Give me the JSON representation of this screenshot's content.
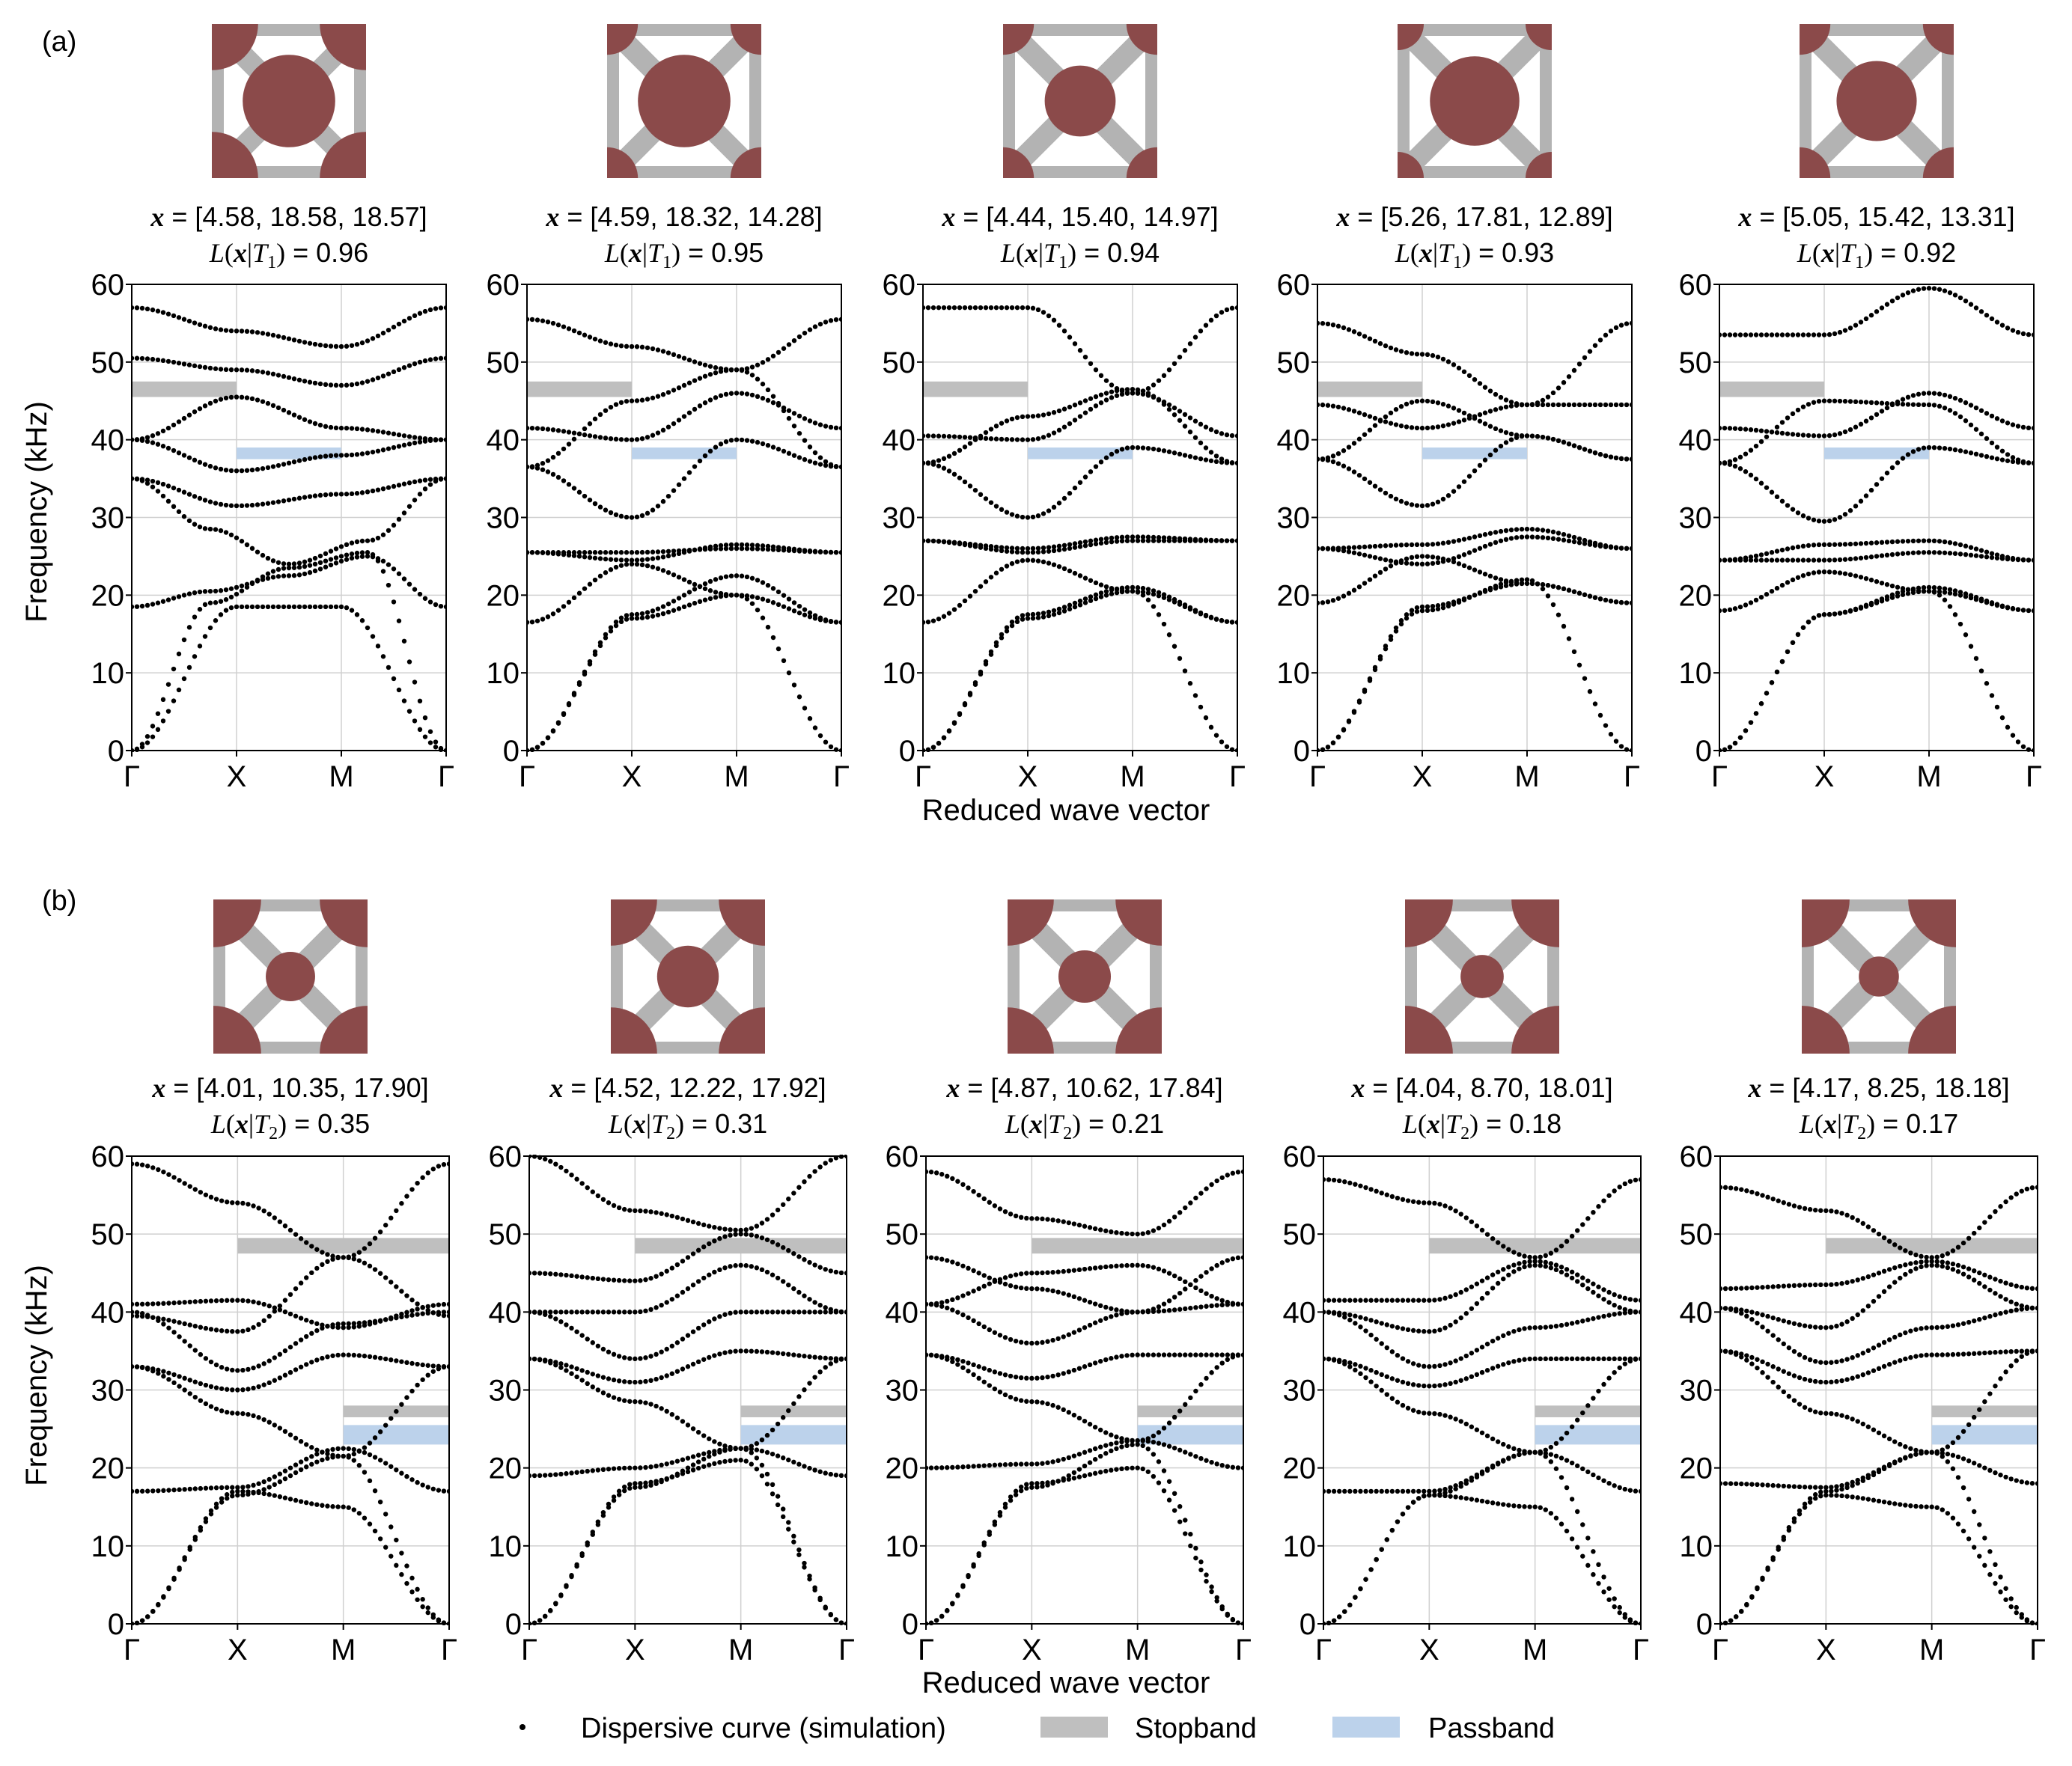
{
  "figure": {
    "colors": {
      "rod": "#b3b3b3",
      "mass": "#8b4a4a",
      "stopband": "#bfbfbf",
      "passband": "#bcd2eb",
      "grid": "#d0d0d0",
      "dot": "#000000"
    },
    "legend": {
      "dispersive": "Dispersive curve (simulation)",
      "stopband": "Stopband",
      "passband": "Passband"
    }
  },
  "chart_data": [
    {
      "panel": "(a)",
      "type": "scatter",
      "ylabel": "Frequency (kHz)",
      "xlabel": "Reduced wave vector",
      "x_ticks": [
        "Γ",
        "X",
        "M",
        "Γ"
      ],
      "ylim": [
        0,
        60
      ],
      "y_ticks": [
        "0",
        "10",
        "20",
        "30",
        "40",
        "50",
        "60"
      ],
      "grid": true,
      "stopband": {
        "path_segment": "Γ-X",
        "range_khz": [
          45.5,
          47.5
        ]
      },
      "passband": {
        "path_segment": "X-M",
        "range_khz": [
          37.5,
          39.0
        ]
      },
      "subplots": [
        {
          "x_text": "= [4.58, 18.58, 18.57]",
          "l_value": "0.96",
          "t_sub": "1",
          "center_r": 0.3,
          "corner_r": 0.3,
          "bands": [
            [
              0,
              18.5,
              18.5,
              0
            ],
            [
              0,
              19.0,
              23.5,
              25.5,
              0
            ],
            [
              18.5,
              20.5,
              22.5,
              25.0,
              18.5
            ],
            [
              35.0,
              31.5,
              33.0,
              35.0
            ],
            [
              35.0,
              28.5,
              24.0,
              27.0,
              35.0
            ],
            [
              40.0,
              36.0,
              38.0,
              40.0
            ],
            [
              40.0,
              45.5,
              41.5,
              40.0
            ],
            [
              50.5,
              49.0,
              47.0,
              50.5
            ],
            [
              57.0,
              54.0,
              52.0,
              57.0
            ]
          ]
        },
        {
          "x_text": "= [4.59, 18.32, 14.28]",
          "l_value": "0.95",
          "t_sub": "1",
          "center_r": 0.3,
          "corner_r": 0.2,
          "bands": [
            [
              0,
              17.0,
              20.0,
              0
            ],
            [
              0,
              17.5,
              22.5,
              16.5
            ],
            [
              16.5,
              24.0,
              20.0,
              16.5
            ],
            [
              25.5,
              24.5,
              26.5,
              25.5
            ],
            [
              25.5,
              25.5,
              26.0,
              25.5
            ],
            [
              36.5,
              30.0,
              40.0,
              36.5
            ],
            [
              41.5,
              40.0,
              46.0,
              41.5
            ],
            [
              36.5,
              45.0,
              49.0,
              36.5
            ],
            [
              55.5,
              52.0,
              49.0,
              55.5
            ]
          ]
        },
        {
          "x_text": "= [4.44, 15.40, 14.97]",
          "l_value": "0.94",
          "t_sub": "1",
          "center_r": 0.23,
          "corner_r": 0.2,
          "bands": [
            [
              0,
              17.0,
              20.5,
              0
            ],
            [
              0,
              17.5,
              21.0,
              16.5
            ],
            [
              16.5,
              24.5,
              20.5,
              16.5
            ],
            [
              27.0,
              26.0,
              27.5,
              27.0
            ],
            [
              27.0,
              25.5,
              27.0,
              27.0
            ],
            [
              37.0,
              30.0,
              39.0,
              37.0
            ],
            [
              40.5,
              40.0,
              46.0,
              40.5
            ],
            [
              37.0,
              43.0,
              46.5,
              37.0
            ],
            [
              57.0,
              57.0,
              46.0,
              57.0
            ]
          ]
        },
        {
          "x_text": "= [5.26, 17.81, 12.89]",
          "l_value": "0.93",
          "t_sub": "1",
          "center_r": 0.29,
          "corner_r": 0.17,
          "bands": [
            [
              0,
              18.0,
              22.0,
              0
            ],
            [
              0,
              18.5,
              21.5,
              19.0
            ],
            [
              19.0,
              25.0,
              21.5,
              19.0
            ],
            [
              26.0,
              26.5,
              28.5,
              26.0
            ],
            [
              26.0,
              24.0,
              27.5,
              26.0
            ],
            [
              37.5,
              31.5,
              40.5,
              37.5
            ],
            [
              44.5,
              41.5,
              44.5,
              44.5
            ],
            [
              37.5,
              45.0,
              40.5,
              37.5
            ],
            [
              55.0,
              51.0,
              44.5,
              55.0
            ]
          ]
        },
        {
          "x_text": "= [5.05, 15.42, 13.31]",
          "l_value": "0.92",
          "t_sub": "1",
          "center_r": 0.26,
          "corner_r": 0.2,
          "bands": [
            [
              0,
              17.5,
              20.5,
              0
            ],
            [
              0,
              17.5,
              21.0,
              18.0
            ],
            [
              18.0,
              23.0,
              20.5,
              18.0
            ],
            [
              24.5,
              26.5,
              27.0,
              24.5
            ],
            [
              24.5,
              24.5,
              25.5,
              24.5
            ],
            [
              37.0,
              29.5,
              39.0,
              37.0
            ],
            [
              41.5,
              40.5,
              46.0,
              41.5
            ],
            [
              37.0,
              45.0,
              44.5,
              37.0
            ],
            [
              53.5,
              53.5,
              59.5,
              53.5
            ]
          ]
        }
      ]
    },
    {
      "panel": "(b)",
      "type": "scatter",
      "ylabel": "Frequency (kHz)",
      "xlabel": "Reduced wave vector",
      "x_ticks": [
        "Γ",
        "X",
        "M",
        "Γ"
      ],
      "ylim": [
        0,
        60
      ],
      "y_ticks": [
        "0",
        "10",
        "20",
        "30",
        "40",
        "50",
        "60"
      ],
      "grid": true,
      "stopbands": [
        {
          "path_segment": "X-Γ",
          "range_khz": [
            47.5,
            49.5
          ]
        },
        {
          "path_segment": "M-Γ",
          "range_khz": [
            26.5,
            28.0
          ]
        }
      ],
      "passband": {
        "path_segment": "M-Γ",
        "range_khz": [
          23.0,
          25.5
        ]
      },
      "subplots": [
        {
          "x_text": "= [4.01, 10.35, 17.90]",
          "l_value": "0.35",
          "t_sub": "2",
          "center_r": 0.16,
          "corner_r": 0.31,
          "bands": [
            [
              0,
              16.5,
              21.5,
              0
            ],
            [
              0,
              17.0,
              15.0,
              0
            ],
            [
              17.0,
              17.5,
              22.5,
              17.0
            ],
            [
              33.0,
              27.0,
              21.5,
              33.0
            ],
            [
              33.0,
              30.0,
              34.5,
              33.0
            ],
            [
              40.0,
              32.5,
              38.5,
              40.0
            ],
            [
              41.0,
              41.5,
              38.0,
              41.0
            ],
            [
              39.5,
              37.5,
              47.0,
              39.5
            ],
            [
              59.0,
              54.0,
              47.0,
              59.0
            ]
          ]
        },
        {
          "x_text": "= [4.52, 12.22, 17.92]",
          "l_value": "0.31",
          "t_sub": "2",
          "center_r": 0.2,
          "corner_r": 0.3,
          "bands": [
            [
              0,
              17.5,
              22.5,
              0
            ],
            [
              0,
              18.0,
              21.0,
              0
            ],
            [
              19.0,
              20.0,
              22.5,
              19.0
            ],
            [
              34.0,
              28.5,
              22.5,
              34.0
            ],
            [
              34.0,
              31.0,
              35.0,
              34.0
            ],
            [
              40.0,
              34.0,
              40.0,
              40.0
            ],
            [
              45.0,
              44.0,
              50.0,
              45.0
            ],
            [
              40.0,
              40.0,
              46.0,
              40.0
            ],
            [
              60.0,
              53.0,
              50.5,
              60.0
            ]
          ]
        },
        {
          "x_text": "= [4.87, 10.62, 17.84]",
          "l_value": "0.21",
          "t_sub": "2",
          "center_r": 0.17,
          "corner_r": 0.3,
          "bands": [
            [
              0,
              17.5,
              23.0,
              0
            ],
            [
              0,
              18.0,
              20.0,
              0
            ],
            [
              20.0,
              20.5,
              23.5,
              20.0
            ],
            [
              34.5,
              28.5,
              23.5,
              34.5
            ],
            [
              34.5,
              31.5,
              34.5,
              34.5
            ],
            [
              41.0,
              36.0,
              40.0,
              41.0
            ],
            [
              47.0,
              43.0,
              40.0,
              47.0
            ],
            [
              41.0,
              45.0,
              46.0,
              41.0
            ],
            [
              58.0,
              52.0,
              50.0,
              58.0
            ]
          ]
        },
        {
          "x_text": "= [4.04, 8.70, 18.01]",
          "l_value": "0.18",
          "t_sub": "2",
          "center_r": 0.14,
          "corner_r": 0.31,
          "bands": [
            [
              0,
              16.5,
              22.0,
              0
            ],
            [
              0,
              16.5,
              15.0,
              0
            ],
            [
              17.0,
              17.0,
              22.0,
              17.0
            ],
            [
              34.0,
              27.0,
              22.0,
              34.0
            ],
            [
              34.0,
              30.5,
              34.0,
              34.0
            ],
            [
              40.0,
              33.0,
              38.0,
              40.0
            ],
            [
              41.5,
              41.5,
              46.5,
              41.5
            ],
            [
              40.0,
              37.5,
              46.0,
              40.0
            ],
            [
              57.0,
              54.0,
              47.0,
              57.0
            ]
          ]
        },
        {
          "x_text": "= [4.17, 8.25, 18.18]",
          "l_value": "0.17",
          "t_sub": "2",
          "center_r": 0.13,
          "corner_r": 0.31,
          "bands": [
            [
              0,
              17.0,
              22.0,
              0
            ],
            [
              0,
              16.5,
              15.0,
              0
            ],
            [
              18.0,
              17.5,
              22.0,
              18.0
            ],
            [
              35.0,
              27.0,
              22.0,
              35.0
            ],
            [
              35.0,
              31.0,
              34.5,
              35.0
            ],
            [
              40.5,
              33.5,
              38.0,
              40.5
            ],
            [
              43.0,
              43.5,
              46.5,
              43.0
            ],
            [
              40.5,
              38.0,
              46.0,
              40.5
            ],
            [
              56.0,
              53.0,
              47.0,
              56.0
            ]
          ]
        }
      ]
    }
  ]
}
